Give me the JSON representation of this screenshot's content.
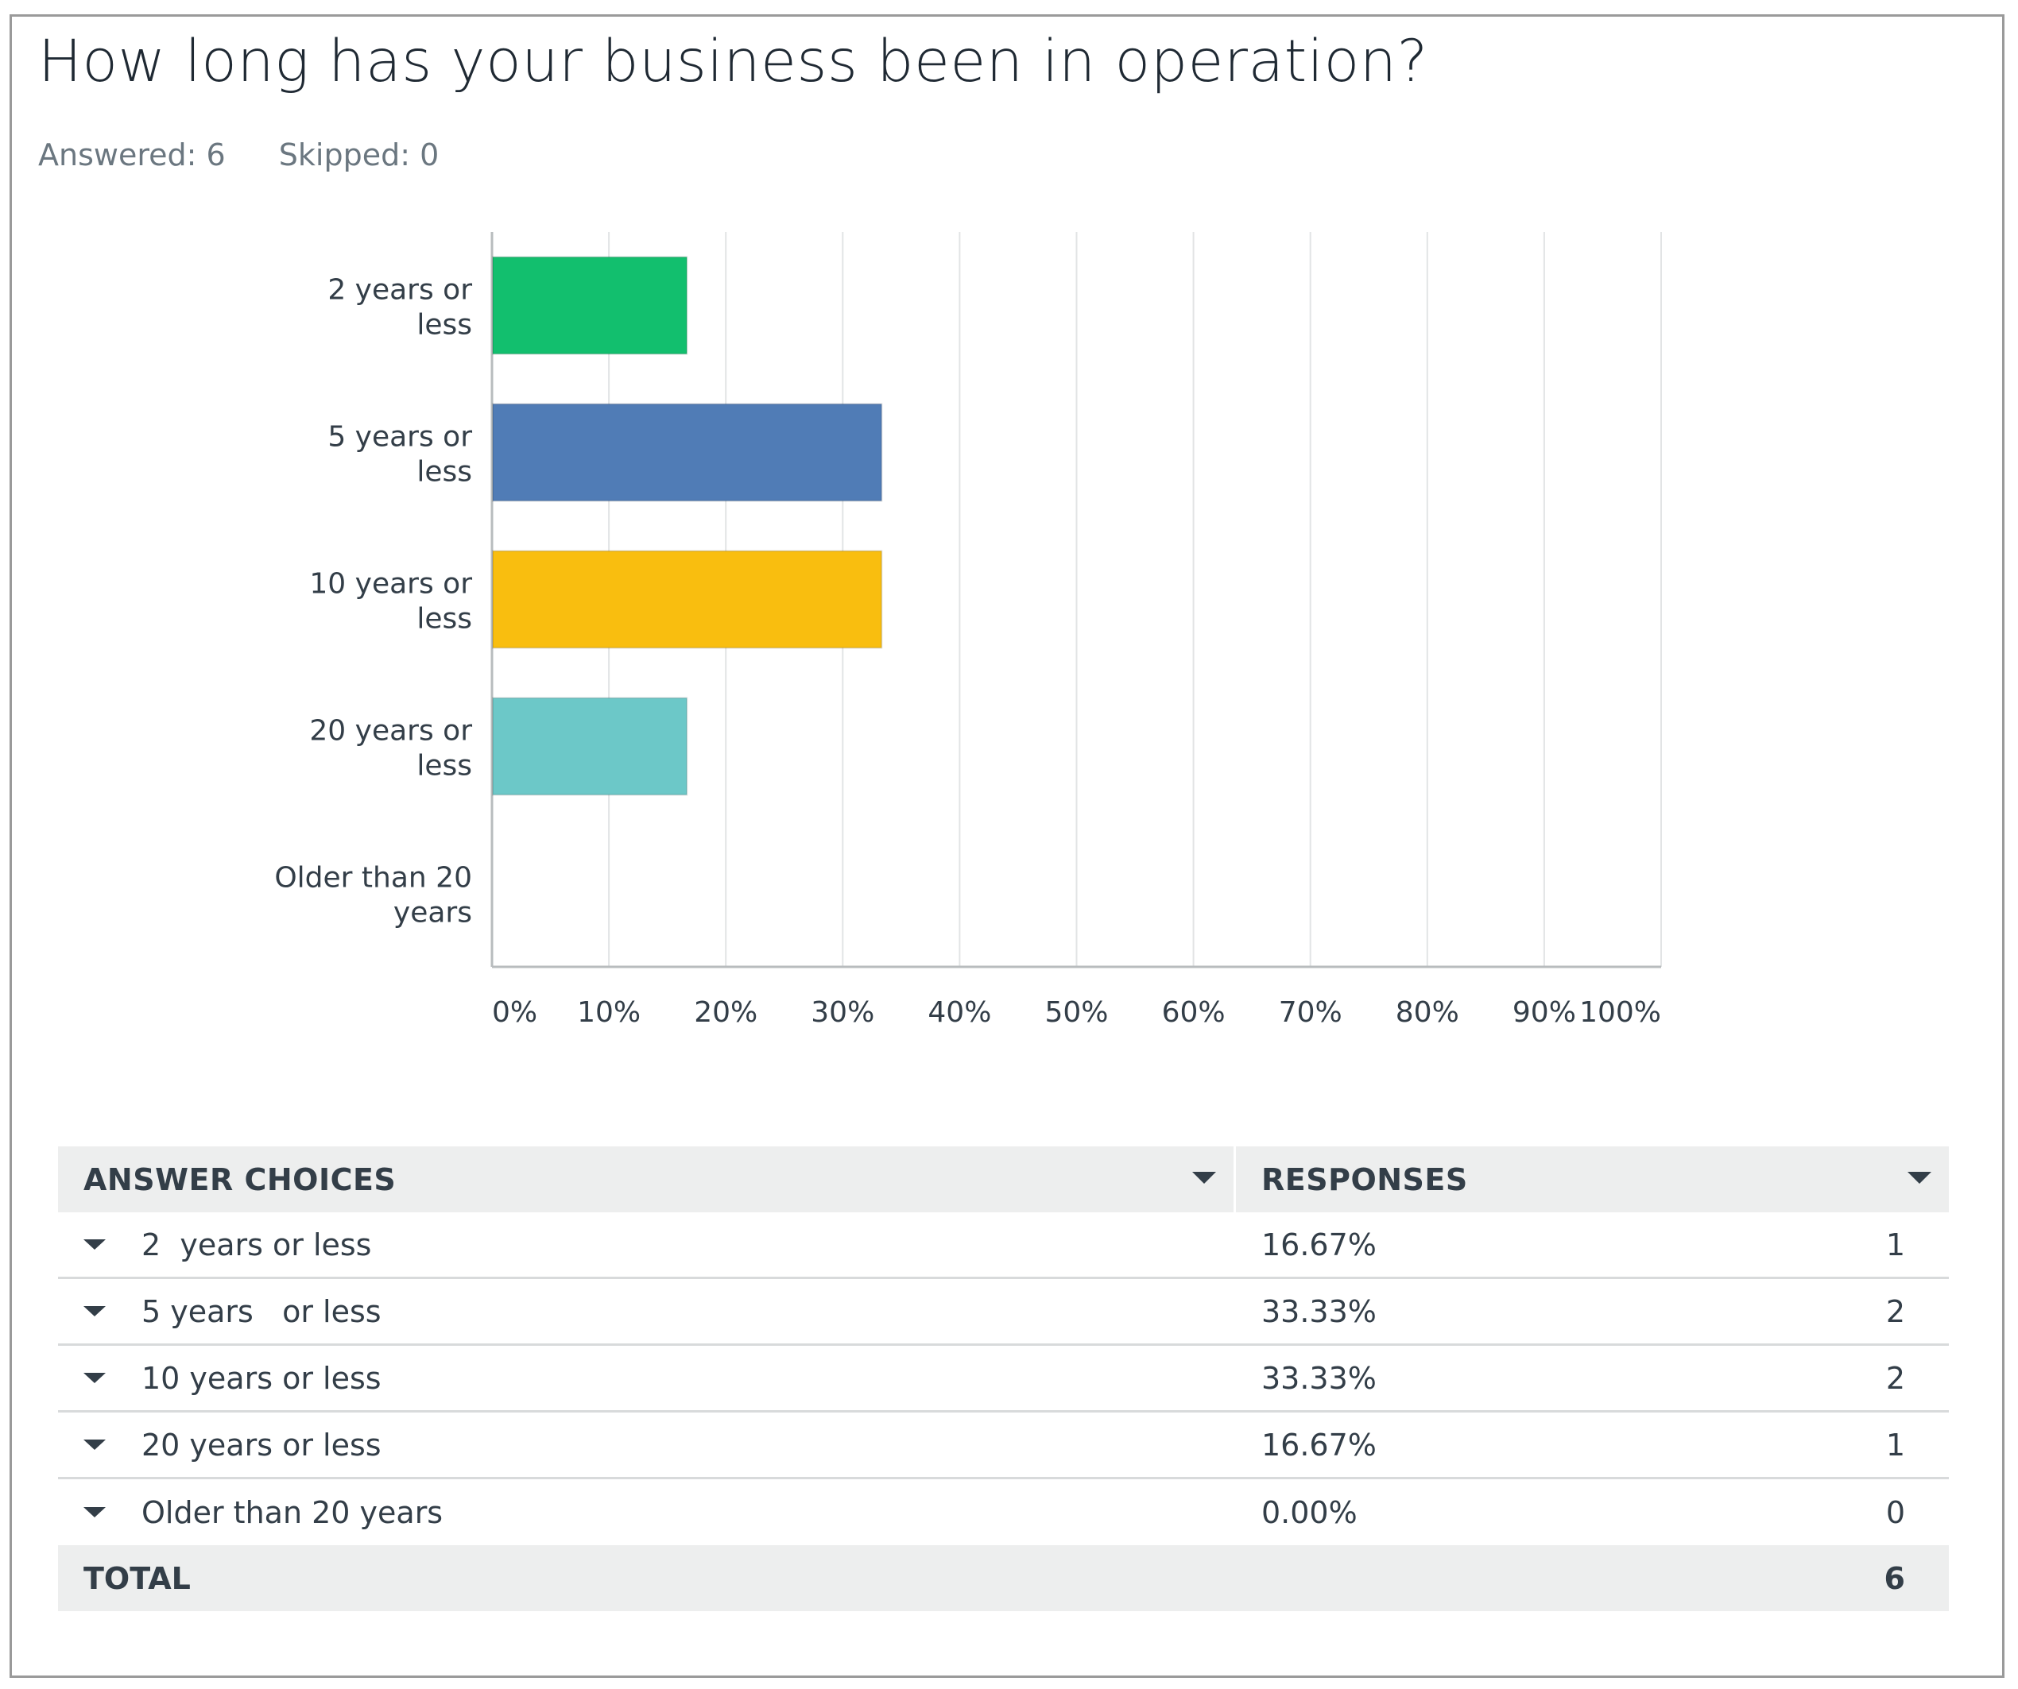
{
  "question": {
    "title": "How long has your business been in operation?",
    "answered": "Answered: 6",
    "skipped": "Skipped: 0"
  },
  "colors": {
    "bars": [
      "#12bf6e",
      "#507cb6",
      "#f9be0f",
      "#6cc8c8",
      "#e5e5e5"
    ],
    "grid": "#e2e4e5",
    "axis": "#b8bcbe",
    "text": "#333e48"
  },
  "chart_data": {
    "type": "bar",
    "orientation": "horizontal",
    "categories": [
      [
        "2 years or",
        "less"
      ],
      [
        "5 years or",
        "less"
      ],
      [
        "10 years or",
        "less"
      ],
      [
        "20 years or",
        "less"
      ],
      [
        "Older than 20",
        "years"
      ]
    ],
    "values": [
      16.67,
      33.33,
      33.33,
      16.67,
      0
    ],
    "xlim": [
      0,
      100
    ],
    "xticks": [
      "0%",
      "10%",
      "20%",
      "30%",
      "40%",
      "50%",
      "60%",
      "70%",
      "80%",
      "90%",
      "100%"
    ],
    "title": "How long has your business been in operation?",
    "grid": true
  },
  "table": {
    "headers": [
      "ANSWER CHOICES",
      "RESPONSES"
    ],
    "rows": [
      {
        "choice": "2  years or less",
        "percent": "16.67%",
        "count": "1"
      },
      {
        "choice": "5 years   or less",
        "percent": "33.33%",
        "count": "2"
      },
      {
        "choice": "10 years or less",
        "percent": "33.33%",
        "count": "2"
      },
      {
        "choice": "20 years or less",
        "percent": "16.67%",
        "count": "1"
      },
      {
        "choice": "Older than 20 years",
        "percent": "0.00%",
        "count": "0"
      }
    ],
    "total_label": "TOTAL",
    "total_value": "6"
  }
}
